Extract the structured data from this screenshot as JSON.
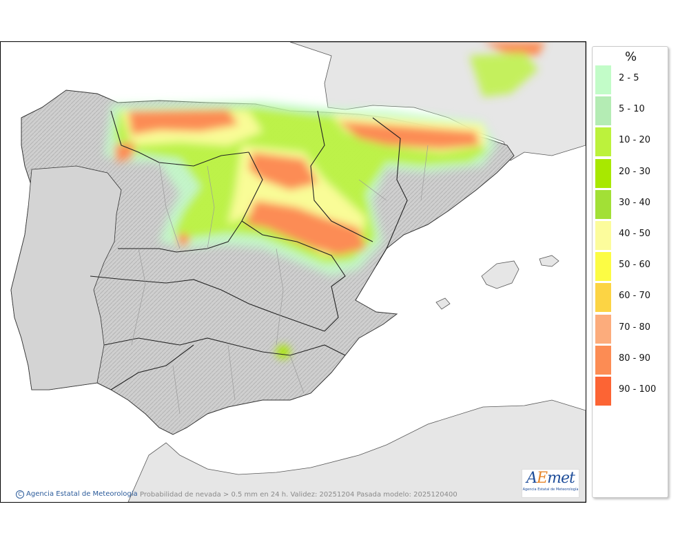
{
  "map": {
    "caption": "Probabilidad de nevada > 0.5 mm en 24 h. Validez: 20251204 Pasada modelo: 2025120400",
    "copyright": "Agencia Estatal de Meteorología",
    "logo": {
      "main_a": "A",
      "main_e": "E",
      "main_rest": "met",
      "sub": "Agencia Estatal de Meteorología"
    }
  },
  "legend": {
    "unit": "%",
    "items": [
      {
        "label": "2 - 5",
        "color": "#c2fcc8"
      },
      {
        "label": "5 - 10",
        "color": "#b4ecb4"
      },
      {
        "label": "10 - 20",
        "color": "#bcf23c"
      },
      {
        "label": "20 - 30",
        "color": "#a8e800"
      },
      {
        "label": "30 - 40",
        "color": "#a2e036"
      },
      {
        "label": "40 - 50",
        "color": "#fcfc9c"
      },
      {
        "label": "50 - 60",
        "color": "#fcfc44"
      },
      {
        "label": "60 - 70",
        "color": "#fcd444"
      },
      {
        "label": "70 - 80",
        "color": "#fcac7c"
      },
      {
        "label": "80 - 90",
        "color": "#fc8c54"
      },
      {
        "label": "90 - 100",
        "color": "#fc6434"
      }
    ]
  },
  "colors": {
    "sea": "#ffffff",
    "land_other": "#e6e6e6",
    "land_iberia": "#c9c9c9",
    "border_major": "#222222",
    "border_minor": "#9a9a9a"
  }
}
